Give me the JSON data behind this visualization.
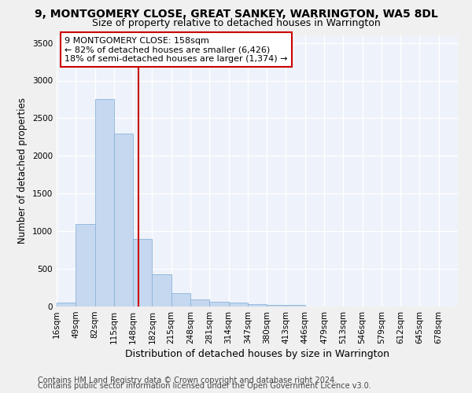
{
  "title": "9, MONTGOMERY CLOSE, GREAT SANKEY, WARRINGTON, WA5 8DL",
  "subtitle": "Size of property relative to detached houses in Warrington",
  "xlabel": "Distribution of detached houses by size in Warrington",
  "ylabel": "Number of detached properties",
  "categories": [
    "16sqm",
    "49sqm",
    "82sqm",
    "115sqm",
    "148sqm",
    "182sqm",
    "215sqm",
    "248sqm",
    "281sqm",
    "314sqm",
    "347sqm",
    "380sqm",
    "413sqm",
    "446sqm",
    "479sqm",
    "513sqm",
    "546sqm",
    "579sqm",
    "612sqm",
    "645sqm",
    "678sqm"
  ],
  "values": [
    50,
    1100,
    2750,
    2300,
    900,
    430,
    175,
    95,
    65,
    50,
    35,
    25,
    20,
    5,
    4,
    2,
    1,
    1,
    0,
    0,
    0
  ],
  "bar_color": "#c5d8f0",
  "bar_edgecolor": "#8cb4d8",
  "vline_color": "#cc0000",
  "annotation_line1": "9 MONTGOMERY CLOSE: 158sqm",
  "annotation_line2": "← 82% of detached houses are smaller (6,426)",
  "annotation_line3": "18% of semi-detached houses are larger (1,374) →",
  "annotation_box_color": "#ffffff",
  "annotation_box_edgecolor": "#cc0000",
  "ylim": [
    0,
    3600
  ],
  "yticks": [
    0,
    500,
    1000,
    1500,
    2000,
    2500,
    3000,
    3500
  ],
  "background_color": "#eef2fa",
  "grid_color": "#ffffff",
  "footer1": "Contains HM Land Registry data © Crown copyright and database right 2024.",
  "footer2": "Contains public sector information licensed under the Open Government Licence v3.0.",
  "title_fontsize": 10,
  "subtitle_fontsize": 9,
  "xlabel_fontsize": 9,
  "ylabel_fontsize": 8.5,
  "tick_fontsize": 7.5,
  "annotation_fontsize": 8,
  "footer_fontsize": 7
}
